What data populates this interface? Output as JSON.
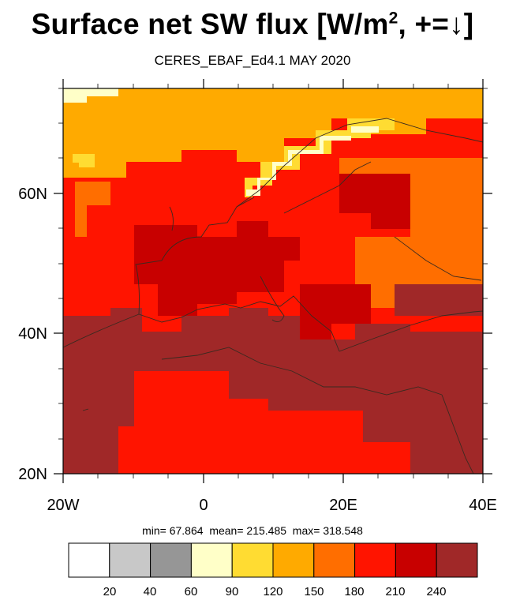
{
  "title": {
    "prefix": "Surface net SW flux [W/m",
    "sup": "2",
    "suffix": ", +=↓]"
  },
  "subtitle": "CERES_EBAF_Ed4.1 MAY 2020",
  "axes": {
    "x_ticks": [
      "20W",
      "0",
      "20E",
      "40E"
    ],
    "y_ticks": [
      "60N",
      "40N",
      "20N"
    ],
    "x_range_deg": [
      -20,
      40
    ],
    "y_range_deg": [
      20,
      75
    ]
  },
  "stats": {
    "min_label": "min=",
    "min": "67.864",
    "mean_label": "mean=",
    "mean": "215.485",
    "max_label": "max=",
    "max": "318.548"
  },
  "colorbar": {
    "levels": [
      "20",
      "40",
      "60",
      "90",
      "120",
      "150",
      "180",
      "210",
      "240"
    ],
    "colors": [
      "#ffffff",
      "#c8c8c8",
      "#969696",
      "#ffffc8",
      "#ffdc32",
      "#ffaa00",
      "#ff6e00",
      "#ff1400",
      "#c80000",
      "#a02828"
    ]
  },
  "map_colors": {
    "desert": "#a02828",
    "land": "#c80000",
    "sea": "#ff1400",
    "cloudy": "#ff6e00",
    "north": "#ffaa00",
    "snow": "#ffdc32",
    "ice": "#ffffc8",
    "coast": "#3a2a20"
  }
}
